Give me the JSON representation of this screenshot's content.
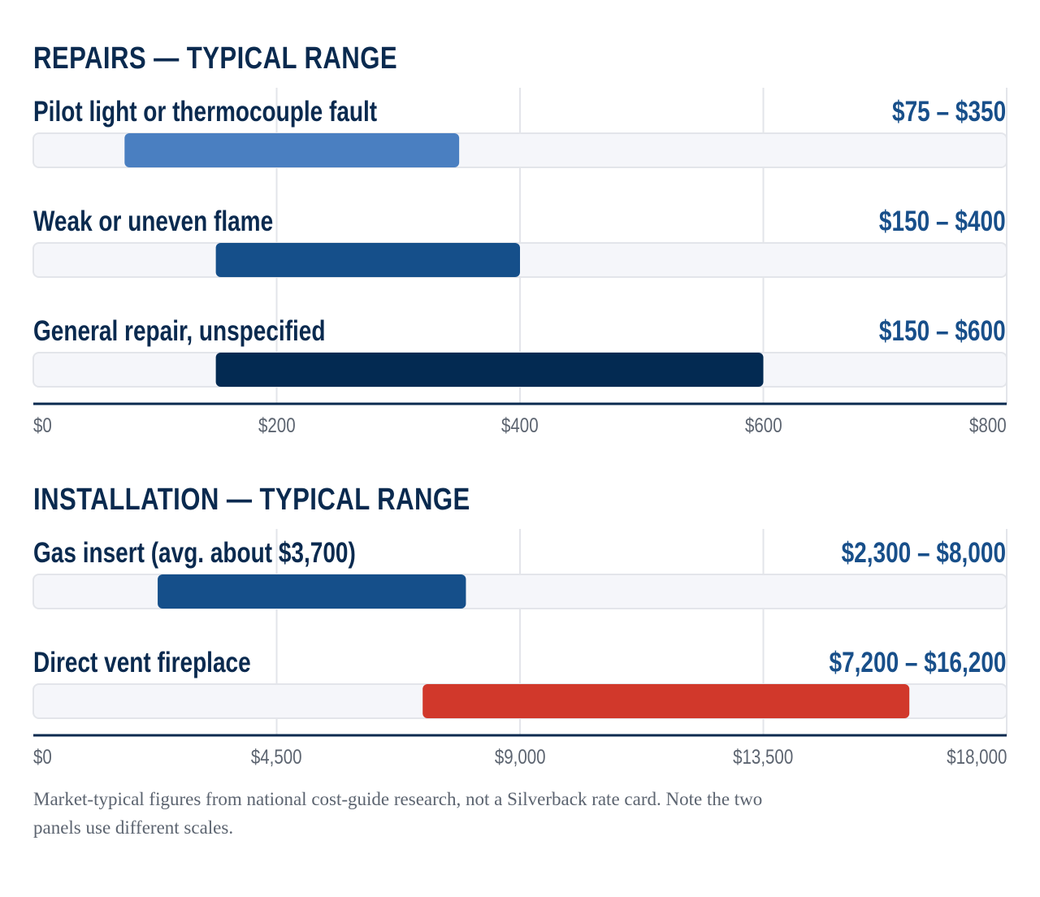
{
  "chart_data": [
    {
      "type": "range-bar",
      "title": "REPAIRS — TYPICAL RANGE",
      "xlim": [
        0,
        800
      ],
      "ticks": [
        "$0",
        "$200",
        "$400",
        "$600",
        "$800"
      ],
      "tick_values": [
        0,
        200,
        400,
        600,
        800
      ],
      "grid": true,
      "rows": [
        {
          "label": "Pilot light or thermocouple fault",
          "range_label": "$75 – $350",
          "low": 75,
          "high": 350,
          "color": "#4a7fc1"
        },
        {
          "label": "Weak or uneven flame",
          "range_label": "$150 – $400",
          "low": 150,
          "high": 400,
          "color": "#154f8a"
        },
        {
          "label": "General repair, unspecified",
          "range_label": "$150 – $600",
          "low": 150,
          "high": 600,
          "color": "#032a52"
        }
      ]
    },
    {
      "type": "range-bar",
      "title": "INSTALLATION — TYPICAL RANGE",
      "xlim": [
        0,
        18000
      ],
      "ticks": [
        "$0",
        "$4,500",
        "$9,000",
        "$13,500",
        "$18,000"
      ],
      "tick_values": [
        0,
        4500,
        9000,
        13500,
        18000
      ],
      "grid": true,
      "rows": [
        {
          "label": "Gas insert (avg. about $3,700)",
          "range_label": "$2,300 – $8,000",
          "low": 2300,
          "high": 8000,
          "color": "#154f8a"
        },
        {
          "label": "Direct vent fireplace",
          "range_label": "$7,200 – $16,200",
          "low": 7200,
          "high": 16200,
          "color": "#d1382b"
        }
      ]
    }
  ],
  "footnote": "Market-typical figures from national cost-guide research, not a Silverback rate card. Note the two panels use different scales.",
  "colors": {
    "title": "#0a2a4f",
    "value": "#184f8a",
    "axis": "#0a2a4f",
    "grid": "#e3e5ea",
    "track": "#f5f6fa",
    "track_border": "#e3e5ea",
    "tick": "#5c6470"
  }
}
